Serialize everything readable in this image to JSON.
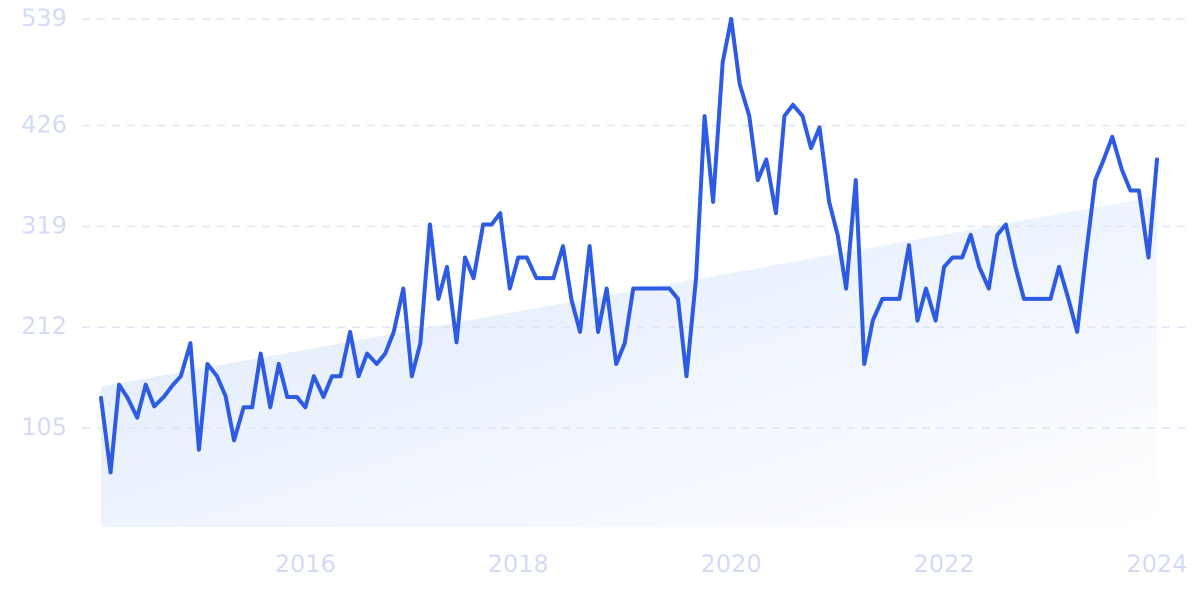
{
  "chart_data": {
    "type": "line",
    "x": [
      2014.08,
      2014.17,
      2014.25,
      2014.33,
      2014.42,
      2014.5,
      2014.58,
      2014.67,
      2014.75,
      2014.83,
      2014.92,
      2015.0,
      2015.08,
      2015.17,
      2015.25,
      2015.33,
      2015.42,
      2015.5,
      2015.58,
      2015.67,
      2015.75,
      2015.83,
      2015.92,
      2016.0,
      2016.08,
      2016.17,
      2016.25,
      2016.33,
      2016.42,
      2016.5,
      2016.58,
      2016.67,
      2016.75,
      2016.83,
      2016.92,
      2017.0,
      2017.08,
      2017.17,
      2017.25,
      2017.33,
      2017.42,
      2017.5,
      2017.58,
      2017.67,
      2017.75,
      2017.83,
      2017.92,
      2018.0,
      2018.08,
      2018.17,
      2018.25,
      2018.33,
      2018.42,
      2018.5,
      2018.58,
      2018.67,
      2018.75,
      2018.83,
      2018.92,
      2019.0,
      2019.08,
      2019.17,
      2019.25,
      2019.33,
      2019.42,
      2019.5,
      2019.58,
      2019.67,
      2019.75,
      2019.83,
      2019.92,
      2020.0,
      2020.08,
      2020.17,
      2020.25,
      2020.33,
      2020.42,
      2020.5,
      2020.58,
      2020.67,
      2020.75,
      2020.83,
      2020.92,
      2021.0,
      2021.08,
      2021.17,
      2021.25,
      2021.33,
      2021.42,
      2021.5,
      2021.58,
      2021.67,
      2021.75,
      2021.83,
      2021.92,
      2022.0,
      2022.08,
      2022.17,
      2022.25,
      2022.33,
      2022.42,
      2022.5,
      2022.58,
      2022.67,
      2022.75,
      2022.83,
      2022.92,
      2023.0,
      2023.08,
      2023.17,
      2023.25,
      2023.33,
      2023.42,
      2023.5,
      2023.58,
      2023.67,
      2023.75,
      2023.83,
      2023.92,
      2024.0
    ],
    "values": [
      137,
      58,
      151,
      137,
      116,
      151,
      128,
      138,
      150,
      160,
      195,
      82,
      173,
      160,
      139,
      92,
      127,
      127,
      184,
      127,
      173,
      138,
      138,
      127,
      160,
      138,
      160,
      160,
      207,
      160,
      184,
      173,
      184,
      207,
      253,
      160,
      195,
      321,
      242,
      276,
      196,
      286,
      264,
      321,
      321,
      333,
      253,
      286,
      286,
      264,
      264,
      264,
      298,
      241,
      207,
      298,
      207,
      253,
      173,
      195,
      253,
      253,
      253,
      253,
      253,
      242,
      160,
      264,
      436,
      345,
      493,
      539,
      470,
      436,
      368,
      390,
      333,
      436,
      448,
      436,
      402,
      424,
      345,
      310,
      253,
      368,
      173,
      219,
      242,
      242,
      242,
      299,
      219,
      253,
      219,
      276,
      286,
      286,
      310,
      276,
      253,
      310,
      321,
      276,
      242,
      242,
      242,
      242,
      276,
      241,
      207,
      286,
      368,
      390,
      414,
      379,
      357,
      357,
      286,
      390
    ],
    "color": "#2d5be3",
    "trend": [
      149,
      351
    ],
    "xlim": [
      2014.08,
      2024
    ],
    "xticks": [
      2016,
      2018,
      2020,
      2022,
      2024
    ],
    "ylim": [
      0,
      539
    ],
    "yticks": [
      105,
      212,
      319,
      426,
      539
    ],
    "grid": true
  }
}
